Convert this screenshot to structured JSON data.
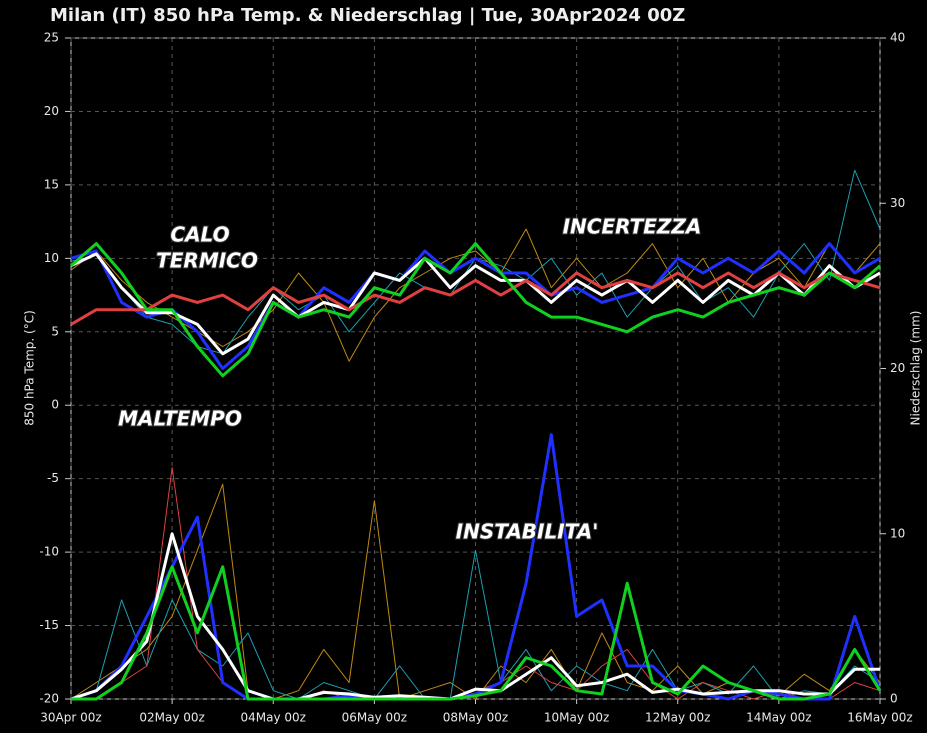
{
  "chart_data": {
    "type": "line",
    "title": "Milan  (IT)  850 hPa Temp. & Niederschlag | Tue, 30Apr2024 00Z",
    "y_label": "850 hPa Temp. (°C)",
    "y2_label": "Niederschlag (mm)",
    "annotations": [
      "CALO",
      "TERMICO",
      "MALTEMPO",
      "INCERTEZZA",
      "INSTABILITA'"
    ],
    "categories": [
      "30Apr 00z",
      null,
      null,
      null,
      "02May 00z",
      null,
      null,
      null,
      "04May 00z",
      null,
      null,
      null,
      "06May 00z",
      null,
      null,
      null,
      "08May 00z",
      null,
      null,
      null,
      "10May 00z",
      null,
      null,
      null,
      "12May 00z",
      null,
      null,
      null,
      "14May 00z",
      null,
      null,
      null,
      "16May 00z"
    ],
    "ylim": [
      -20,
      25
    ],
    "yticks": [
      -20,
      -15,
      -10,
      -5,
      0,
      5,
      10,
      15,
      20,
      25
    ],
    "y2lim": [
      0,
      40
    ],
    "y2ticks": [
      0,
      10,
      20,
      30,
      40
    ],
    "grid": true,
    "series": [
      {
        "color": "#c08a10",
        "width": 1,
        "values": [
          9.2,
          10.5,
          8.5,
          7,
          6,
          5,
          4,
          5,
          6.5,
          9,
          7,
          3,
          6,
          8,
          9,
          10,
          10.5,
          9,
          12,
          8,
          10,
          8,
          9,
          11,
          8,
          10,
          7,
          9,
          10,
          8,
          11,
          9,
          11
        ]
      },
      {
        "color": "#1aa0b0",
        "width": 1,
        "values": [
          9.8,
          10.2,
          8,
          6,
          5.5,
          4,
          3.5,
          6,
          8,
          6.5,
          7.5,
          5,
          7,
          9,
          8,
          7.5,
          10,
          9.5,
          8.5,
          10,
          7.5,
          9,
          6,
          8,
          9.5,
          7,
          8,
          6,
          9,
          11,
          8.5,
          16,
          12
        ]
      },
      {
        "color": "#2030ff",
        "width": 3,
        "values": [
          10,
          10.5,
          7,
          6,
          6.5,
          5,
          2.5,
          4,
          7,
          6,
          8,
          7,
          9,
          8.5,
          10.5,
          9,
          10,
          9,
          9,
          7.5,
          8,
          7,
          7.5,
          8,
          10,
          9,
          10,
          9,
          10.5,
          9,
          11,
          9,
          10
        ]
      },
      {
        "color": "#ffffff",
        "width": 3,
        "values": [
          9.5,
          10.3,
          8,
          6.3,
          6.3,
          5.5,
          3.5,
          4.5,
          7.5,
          6,
          7,
          6.5,
          9,
          8.5,
          10,
          8,
          9.5,
          8.5,
          8.5,
          7,
          8.5,
          7.5,
          8.5,
          7,
          8.5,
          7,
          8.5,
          7.5,
          9,
          7.5,
          9.5,
          8,
          9
        ]
      },
      {
        "color": "#e04040",
        "width": 3,
        "values": [
          5.5,
          6.5,
          6.5,
          6.5,
          7.5,
          7,
          7.5,
          6.5,
          8,
          7,
          7.5,
          6.5,
          7.5,
          7,
          8,
          7.5,
          8.5,
          7.5,
          8.5,
          7.5,
          9,
          8,
          8.5,
          8,
          9,
          8,
          9,
          8,
          9,
          8,
          9,
          8.5,
          8
        ]
      },
      {
        "color": "#10d020",
        "width": 3,
        "values": [
          9.5,
          11,
          9,
          6.5,
          6.5,
          4,
          2,
          3.5,
          7,
          6,
          6.5,
          6,
          8,
          7.5,
          10,
          9,
          11,
          9,
          7,
          6,
          6,
          5.5,
          5,
          6,
          6.5,
          6,
          7,
          7.5,
          8,
          7.5,
          9,
          8,
          9.5
        ]
      },
      {
        "color": "#c08a10",
        "width": 1,
        "axis": "y2",
        "values": [
          0,
          1,
          2,
          3,
          5,
          9,
          13,
          0.5,
          0,
          0.5,
          3,
          1,
          12,
          0,
          0.5,
          1,
          0,
          2,
          1,
          3,
          0.5,
          4,
          1,
          0.5,
          2,
          0.3,
          1,
          0.5,
          0.2,
          1.5,
          0.5,
          3,
          1
        ]
      },
      {
        "color": "#1aa0b0",
        "width": 1,
        "axis": "y2",
        "values": [
          0,
          0.5,
          6,
          2,
          6,
          3,
          2,
          4,
          0.5,
          0,
          1,
          0.5,
          0,
          2,
          0,
          0,
          9,
          1,
          3,
          0.5,
          2,
          1,
          0.5,
          3,
          0.5,
          1,
          0.3,
          2,
          0,
          0.5,
          0.3,
          2,
          1
        ]
      },
      {
        "color": "#e04040",
        "width": 1,
        "axis": "y2",
        "values": [
          0,
          0,
          1,
          2,
          14,
          3,
          1,
          0,
          0,
          0,
          0.5,
          0,
          0,
          0,
          0,
          0,
          0.5,
          1,
          2,
          1,
          0.5,
          2,
          3,
          1,
          0,
          1,
          0.5,
          0,
          0.5,
          0,
          0,
          1,
          0.5
        ]
      },
      {
        "color": "#2030ff",
        "width": 3,
        "axis": "y2",
        "values": [
          0,
          0.5,
          2,
          5,
          8,
          11,
          1,
          0,
          0,
          0,
          0,
          0.2,
          0,
          0,
          0,
          0,
          0.3,
          1,
          7,
          16,
          5,
          6,
          2,
          2,
          0.5,
          0.3,
          0,
          0.5,
          0.3,
          0,
          0,
          5,
          0.5
        ]
      },
      {
        "color": "#ffffff",
        "width": 3,
        "axis": "y2",
        "values": [
          0,
          0.5,
          1.8,
          3.5,
          10,
          5,
          3,
          0.5,
          0,
          0,
          0.4,
          0.3,
          0.1,
          0.2,
          0.1,
          0,
          0.6,
          0.5,
          1.5,
          2.5,
          0.8,
          1,
          1.5,
          0.4,
          0.6,
          0.3,
          0.4,
          0.5,
          0.5,
          0.3,
          0.3,
          1.8,
          1.8
        ]
      },
      {
        "color": "#10d020",
        "width": 3,
        "axis": "y2",
        "values": [
          0,
          0,
          1,
          4,
          8,
          4,
          8,
          0,
          0,
          0,
          0,
          0,
          0,
          0,
          0,
          0,
          0.2,
          0.5,
          2.5,
          2,
          0.5,
          0.3,
          7,
          1,
          0.3,
          2,
          1,
          0.5,
          0,
          0,
          0.3,
          3,
          0.5
        ]
      }
    ]
  }
}
